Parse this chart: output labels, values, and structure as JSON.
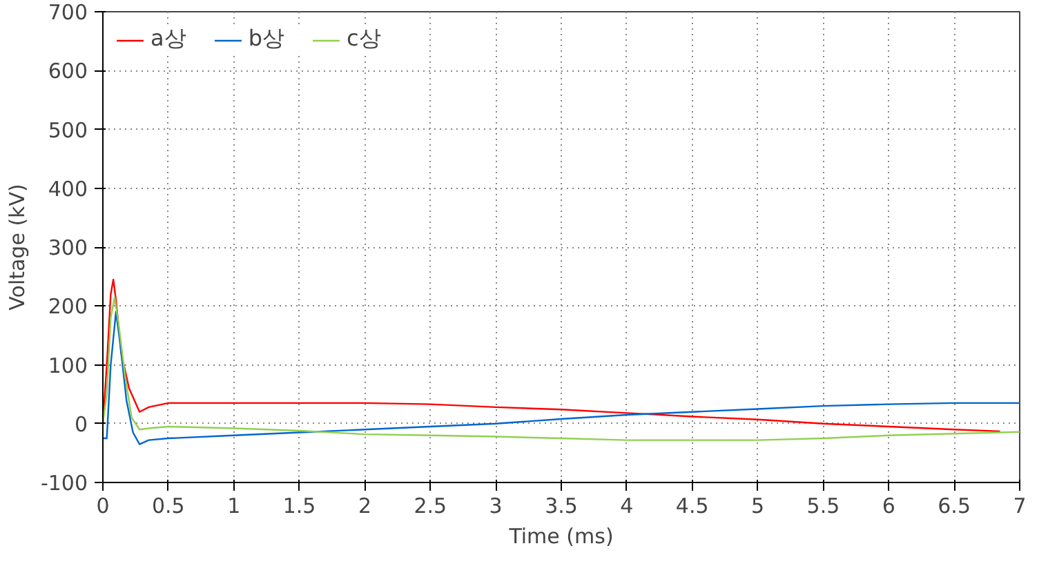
{
  "chart_data": {
    "type": "line",
    "xlabel": "Time (ms)",
    "ylabel": "Voltage (kV)",
    "xlim": [
      0,
      7
    ],
    "ylim": [
      -100,
      700
    ],
    "xticks": [
      0,
      0.5,
      1,
      1.5,
      2,
      2.5,
      3,
      3.5,
      4,
      4.5,
      5,
      5.5,
      6,
      6.5,
      7
    ],
    "yticks": [
      -100,
      0,
      100,
      200,
      300,
      400,
      500,
      600,
      700
    ],
    "grid": true,
    "legend": "top left",
    "series": [
      {
        "name": "a상",
        "color": "#ff0000",
        "x": [
          0,
          0.03,
          0.06,
          0.08,
          0.1,
          0.14,
          0.2,
          0.28,
          0.35,
          0.5,
          1,
          1.5,
          2,
          2.5,
          3,
          3.5,
          4,
          4.5,
          5,
          5.5,
          6,
          6.5,
          6.85
        ],
        "values": [
          0,
          100,
          220,
          245,
          210,
          120,
          60,
          20,
          28,
          35,
          35,
          35,
          35,
          33,
          28,
          24,
          18,
          12,
          7,
          0,
          -5,
          -10,
          -13
        ]
      },
      {
        "name": "b상",
        "color": "#0066cc",
        "x": [
          0,
          0.03,
          0.06,
          0.1,
          0.13,
          0.18,
          0.23,
          0.28,
          0.35,
          0.5,
          1,
          1.5,
          2,
          2.5,
          3,
          3.5,
          4,
          4.5,
          5,
          5.5,
          6,
          6.5,
          7
        ],
        "values": [
          -25,
          -25,
          100,
          190,
          140,
          40,
          -15,
          -35,
          -28,
          -25,
          -20,
          -15,
          -10,
          -5,
          0,
          8,
          15,
          20,
          25,
          30,
          33,
          35,
          35
        ]
      },
      {
        "name": "c상",
        "color": "#92d050",
        "x": [
          0,
          0.03,
          0.06,
          0.09,
          0.12,
          0.17,
          0.22,
          0.28,
          0.35,
          0.5,
          1,
          1.5,
          2,
          2.5,
          3,
          3.5,
          4,
          4.5,
          5,
          5.5,
          6,
          6.5,
          7
        ],
        "values": [
          0,
          50,
          180,
          215,
          170,
          80,
          10,
          -10,
          -8,
          -5,
          -8,
          -12,
          -18,
          -20,
          -22,
          -25,
          -28,
          -28,
          -28,
          -25,
          -20,
          -17,
          -14
        ]
      }
    ]
  }
}
